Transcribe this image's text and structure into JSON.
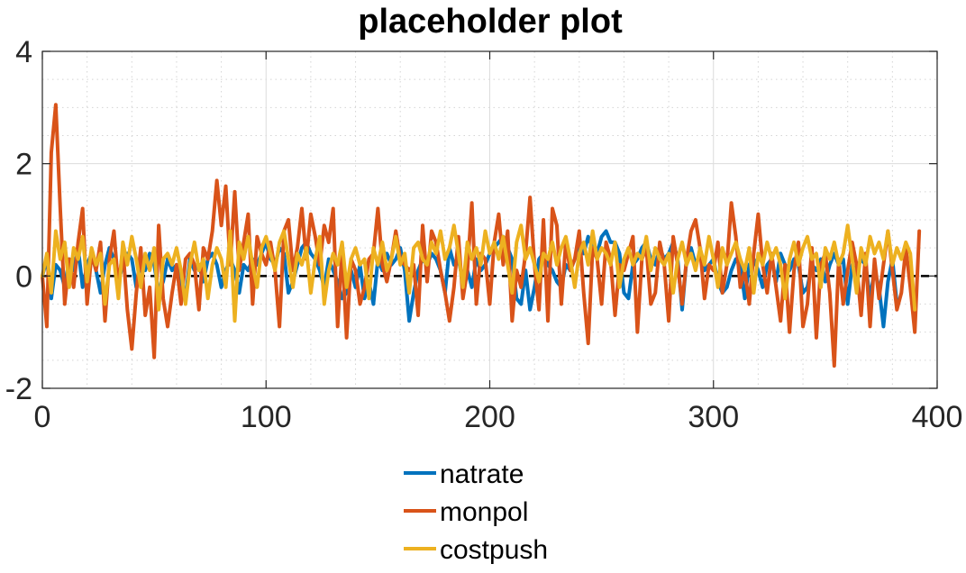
{
  "chart_data": {
    "type": "line",
    "title": "placeholder plot",
    "xlabel": "",
    "ylabel": "",
    "xlim": [
      0,
      400
    ],
    "ylim": [
      -2,
      4
    ],
    "x_ticks": [
      0,
      100,
      200,
      300,
      400
    ],
    "x_tick_labels": [
      "0",
      "100",
      "200",
      "300",
      "400"
    ],
    "y_ticks": [
      -2,
      0,
      2,
      4
    ],
    "y_tick_labels": [
      "-2",
      "0",
      "2",
      "4"
    ],
    "grid": "major and minor (dotted)",
    "legend_position": "bottom-center",
    "x_step": 2,
    "series": [
      {
        "name": "natrate",
        "color": "#0072BD",
        "values": [
          0,
          0.3,
          -0.4,
          0.2,
          0.1,
          -0.2,
          0.3,
          0.1,
          0.5,
          -0.2,
          0.2,
          0.4,
          0.1,
          -0.3,
          0.2,
          0.5,
          0.3,
          -0.1,
          0.2,
          0.4,
          0.3,
          -0.2,
          0.3,
          0.1,
          0.4,
          0.2,
          -0.3,
          -0.1,
          0.3,
          0.1,
          0.2,
          -0.2,
          -0.4,
          0.3,
          0.1,
          0.2,
          -0.1,
          0.3,
          0.4,
          0.2,
          -0.2,
          0.1,
          0.3,
          0.1,
          -0.3,
          0.2,
          0.1,
          0.3,
          0.2,
          0.4,
          0.6,
          0.3,
          0.2,
          0.5,
          0.4,
          -0.3,
          -0.1,
          0.2,
          0.5,
          0.6,
          0.4,
          0.3,
          0.1,
          -0.2,
          0.3,
          0.1,
          -0.1,
          -0.4,
          -0.3,
          0.1,
          -0.2,
          0.2,
          -0.4,
          -0.1,
          -0.5,
          0.3,
          0.1,
          0.4,
          0.2,
          0.3,
          0.5,
          0.1,
          -0.8,
          -0.3,
          0.1,
          0.3,
          0.2,
          0.4,
          0.3,
          0.1,
          -0.3,
          0.5,
          0.2,
          0.3,
          -0.1,
          0.1,
          -0.2,
          0.3,
          0.1,
          0.2,
          0.4,
          0.5,
          0.6,
          0.7,
          0.5,
          0.3,
          -0.4,
          -0.5,
          0.1,
          -0.6,
          -0.2,
          0.3,
          0.4,
          0.2,
          0.1,
          -0.1,
          -0.2,
          0.2,
          0.1,
          0.3,
          0.6,
          0.4,
          0.7,
          0.5,
          0.4,
          0.7,
          0.8,
          0.6,
          0.6,
          0.4,
          -0.3,
          -0.4,
          0.2,
          0.3,
          0.5,
          0.6,
          0.3,
          0.2,
          0.5,
          0.3,
          0.4,
          0.6,
          0.3,
          -0.6,
          0.3,
          0.5,
          0.2,
          0.4,
          0.1,
          0.2,
          0.3,
          -0.1,
          -0.3,
          -0.2,
          0.1,
          0.3,
          0.2,
          -0.4,
          0.2,
          0.3,
          0.1,
          -0.2,
          0.2,
          0.3,
          -0.1,
          0.4,
          0.2,
          0.1,
          0.3,
          0.2,
          -0.3,
          -0.2,
          0.2,
          0.1,
          0.3,
          -0.1,
          0.2,
          0.4,
          0.2,
          0.3,
          -0.5,
          0.2,
          0.1,
          0.3,
          0.2,
          -0.4,
          0.1,
          -0.2,
          -0.9,
          -0.1,
          0.3,
          -0.5
        ]
      },
      {
        "name": "monpol",
        "color": "#D95319",
        "values": [
          0,
          -0.9,
          2.2,
          3.05,
          1.2,
          -0.5,
          0.3,
          -0.2,
          0.6,
          1.2,
          -0.5,
          0.4,
          0.1,
          0.6,
          -0.8,
          0.3,
          0.8,
          -0.2,
          0.5,
          -0.6,
          -1.3,
          -0.3,
          0.5,
          -0.7,
          -0.2,
          -1.45,
          0.9,
          -0.4,
          -0.9,
          -0.3,
          0.2,
          -0.5,
          0.3,
          0.4,
          0.2,
          -0.6,
          0.5,
          0.3,
          0.8,
          1.7,
          0.9,
          1.6,
          0.2,
          1.5,
          0.1,
          0.6,
          1.1,
          -0.5,
          0.7,
          0.4,
          0.2,
          0.6,
          0.1,
          -0.9,
          0.8,
          1.0,
          0.1,
          0.5,
          1.2,
          0.3,
          1.1,
          0.7,
          0.2,
          0.9,
          0.6,
          1.2,
          -0.9,
          0.5,
          -1.1,
          0.3,
          0.1,
          -0.5,
          -0.2,
          0.3,
          0.4,
          1.2,
          0.2,
          -0.1,
          0.3,
          0.8,
          0.3,
          0.2,
          0.1,
          0.2,
          -0.7,
          0.9,
          -0.1,
          0.8,
          0.6,
          0.1,
          -0.3,
          -0.8,
          -0.2,
          0.7,
          -0.4,
          0.1,
          1.3,
          -0.5,
          0.4,
          0.3,
          -0.5,
          0.6,
          1.1,
          0.2,
          0.8,
          -0.8,
          0.1,
          -0.2,
          0.4,
          1.4,
          0.2,
          -0.6,
          1.0,
          -0.8,
          1.2,
          0.9,
          -0.5,
          0.6,
          0.1,
          0.3,
          0.8,
          -0.3,
          -1.2,
          0.5,
          0.3,
          -0.5,
          0.6,
          0.3,
          -0.7,
          0.2,
          0.1,
          0.4,
          0.7,
          -1.0,
          0.3,
          0.5,
          -0.5,
          -0.3,
          0.6,
          0.2,
          -0.8,
          0.7,
          0.2,
          -0.5,
          0.3,
          0.8,
          1.0,
          0.5,
          -0.4,
          0.2,
          0.1,
          0.6,
          -0.3,
          0.2,
          1.3,
          0.7,
          -0.2,
          0.1,
          -0.5,
          0.4,
          1.1,
          0.2,
          -0.3,
          0.4,
          -0.2,
          -0.8,
          0.2,
          -1.0,
          0.1,
          0.6,
          -0.9,
          -0.5,
          0.5,
          -1.1,
          0.2,
          0.4,
          -0.3,
          -1.6,
          0.3,
          -0.5,
          0.1,
          0.6,
          0.2,
          -0.7,
          0.4,
          -0.9,
          0.3,
          -0.4,
          0.2,
          0.8,
          0.1,
          -0.6,
          -0.3,
          0.5,
          -0.2,
          -1.0,
          0.8
        ]
      },
      {
        "name": "costpush",
        "color": "#EDB120",
        "values": [
          0,
          0.4,
          -0.3,
          0.8,
          0.3,
          0.6,
          -0.2,
          0.5,
          0.3,
          0.7,
          -0.1,
          0.5,
          0.2,
          0.4,
          -0.5,
          0.2,
          0.3,
          -0.4,
          0.6,
          0.2,
          0.7,
          0.3,
          -0.2,
          0.4,
          0.1,
          0.5,
          -0.6,
          0.3,
          0.4,
          0.2,
          0.5,
          0.1,
          -0.5,
          0.2,
          0.6,
          0.1,
          0.3,
          -0.4,
          0.2,
          0.5,
          0.3,
          -0.2,
          0.8,
          -0.8,
          0.6,
          0.3,
          0.7,
          0.2,
          -0.2,
          0.5,
          0.7,
          0.4,
          0.1,
          0.6,
          0.8,
          0.3,
          -0.2,
          0.4,
          0.2,
          0.5,
          -0.3,
          0.3,
          0.7,
          -0.5,
          0.1,
          0.4,
          0.2,
          0.6,
          -0.2,
          0.3,
          0.5,
          0.2,
          0.3,
          -0.4,
          0.5,
          0.2,
          0.6,
          0.1,
          0.3,
          0.7,
          0.2,
          0.4,
          -0.3,
          0.5,
          0.6,
          0.3,
          0.2,
          0.6,
          0.4,
          0.8,
          0.3,
          0.5,
          0.9,
          0.4,
          -0.2,
          0.6,
          0.3,
          0.5,
          0.2,
          0.8,
          0.4,
          0.6,
          0.3,
          0.7,
          0.2,
          -0.3,
          0.6,
          0.9,
          0.3,
          0.5,
          0.2,
          -0.1,
          0.4,
          0.3,
          0.6,
          0.2,
          0.5,
          0.7,
          0.3,
          -0.2,
          0.4,
          0.6,
          0.2,
          0.8,
          0.3,
          0.5,
          0.4,
          0.2,
          0.6,
          -0.2,
          0.3,
          0.5,
          0.2,
          0.4,
          0.3,
          0.7,
          0.1,
          0.5,
          0.3,
          0.2,
          0.4,
          -0.3,
          0.3,
          0.6,
          0.2,
          0.4,
          0.1,
          0.5,
          0.2,
          0.7,
          0.3,
          -0.2,
          0.5,
          0.2,
          0.4,
          0.6,
          0.3,
          0.1,
          0.5,
          -0.3,
          0.4,
          0.2,
          0.6,
          0.3,
          0.5,
          0.2,
          -0.4,
          0.3,
          0.6,
          0.2,
          0.5,
          0.7,
          0.3,
          0.4,
          -0.2,
          0.5,
          0.3,
          0.6,
          0.2,
          0.4,
          0.9,
          0.3,
          -0.3,
          0.5,
          0.2,
          0.7,
          0.4,
          0.6,
          0.3,
          0.8,
          0.2,
          0.5,
          0.3,
          0.6,
          0.4,
          -0.6
        ]
      }
    ]
  }
}
